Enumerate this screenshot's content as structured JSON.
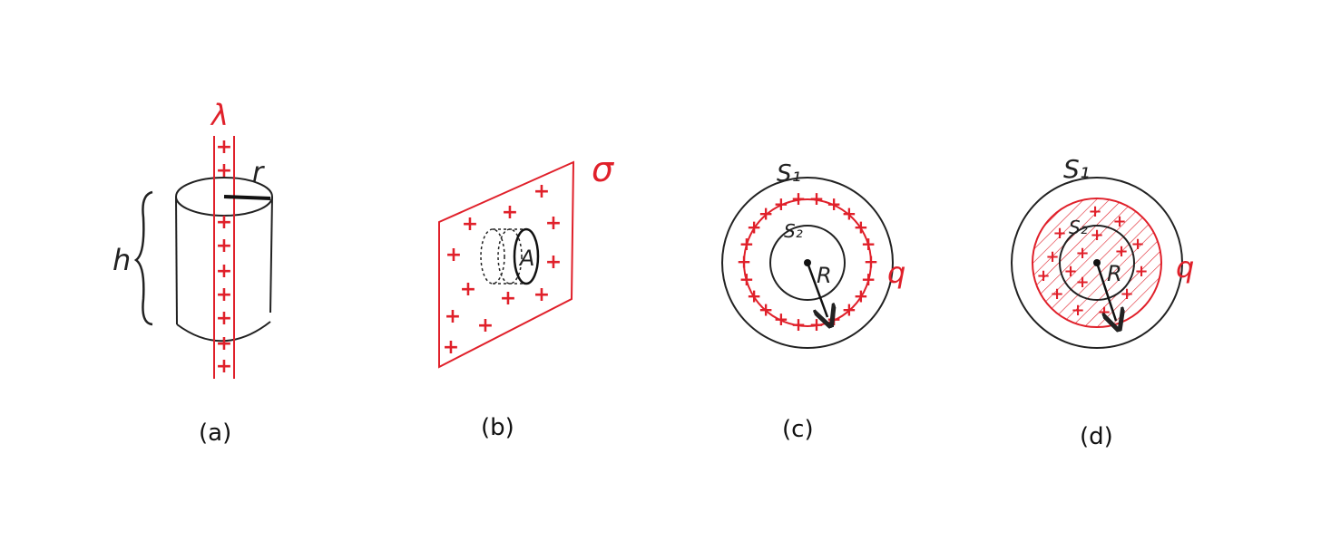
{
  "colors": {
    "ink": "#222222",
    "charge": "#e0202a"
  },
  "panels": {
    "a": {
      "caption": "(a)",
      "line_label": "λ",
      "radius_label": "r",
      "height_label": "h"
    },
    "b": {
      "caption": "(b)",
      "sigma_label": "σ",
      "area_label": "A"
    },
    "c": {
      "caption": "(c)",
      "outer_label": "S₁",
      "inner_label": "S₂",
      "radius_label": "R",
      "charge_label": "q"
    },
    "d": {
      "caption": "(d)",
      "outer_label": "S₁",
      "inner_label": "S₂",
      "radius_label": "R",
      "charge_label": "q"
    }
  }
}
